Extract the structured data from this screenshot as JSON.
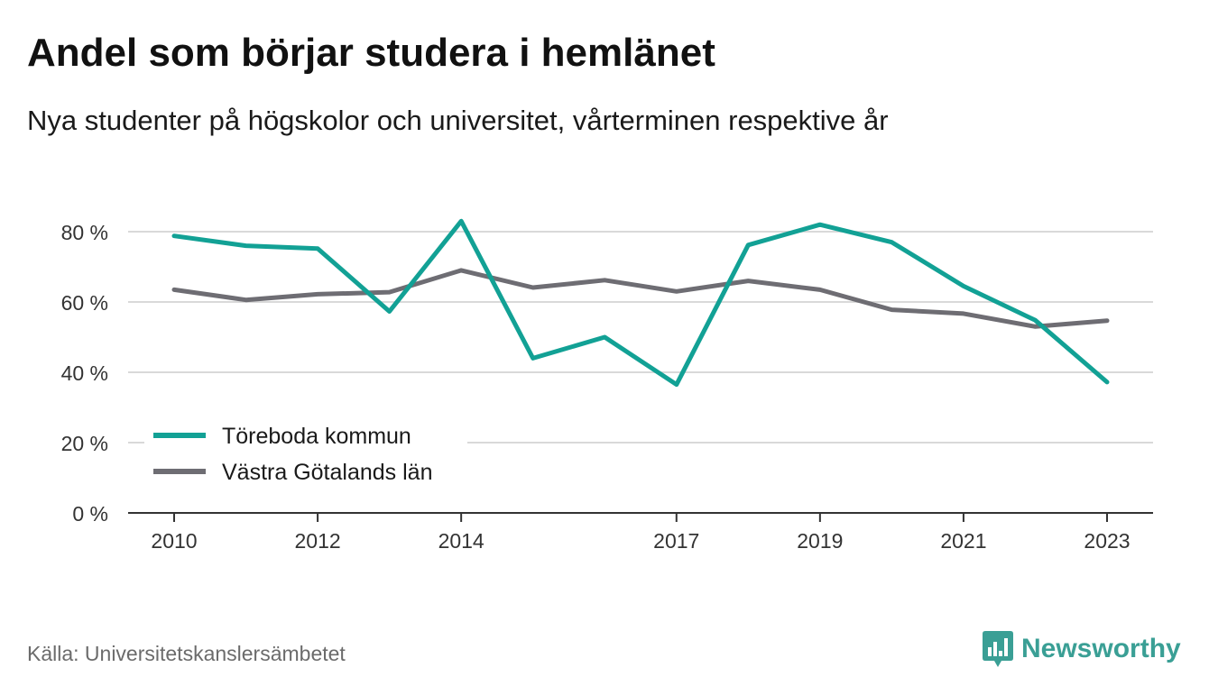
{
  "header": {
    "title": "Andel som börjar studera i hemlänet",
    "subtitle": "Nya studenter på högskolor och universitet, vårterminen respektive år"
  },
  "footer": {
    "source": "Källa: Universitetskanslersämbetet",
    "brand": "Newsworthy",
    "brand_icon": "bar-chart-bubble-icon"
  },
  "colors": {
    "series_1": "#12a195",
    "series_2": "#6e6d73",
    "grid": "#d9d9d9",
    "axis": "#333333",
    "brand": "#3a9f95"
  },
  "chart_data": {
    "type": "line",
    "x": [
      2010,
      2011,
      2012,
      2013,
      2014,
      2015,
      2016,
      2017,
      2018,
      2019,
      2020,
      2021,
      2022,
      2023
    ],
    "x_tick_labels": [
      "2010",
      "2012",
      "2014",
      "2017",
      "2019",
      "2021",
      "2023"
    ],
    "x_tick_values": [
      2010,
      2012,
      2014,
      2017,
      2019,
      2021,
      2023
    ],
    "y_ticks": [
      0,
      20,
      40,
      60,
      80
    ],
    "y_tick_labels": [
      "0 %",
      "20 %",
      "40 %",
      "60 %",
      "80 %"
    ],
    "ylim": [
      0,
      87
    ],
    "grid": true,
    "legend_position": "bottom-left",
    "series": [
      {
        "name": "Töreboda kommun",
        "values": [
          78.8,
          76.0,
          75.2,
          57.3,
          83.0,
          44.0,
          50.0,
          36.5,
          76.2,
          82.0,
          77.0,
          64.5,
          54.8,
          37.2
        ]
      },
      {
        "name": "Västra Götalands län",
        "values": [
          63.5,
          60.6,
          62.2,
          62.8,
          69.0,
          64.1,
          66.2,
          63.0,
          66.0,
          63.5,
          57.8,
          56.7,
          53.0,
          54.7
        ]
      }
    ]
  }
}
